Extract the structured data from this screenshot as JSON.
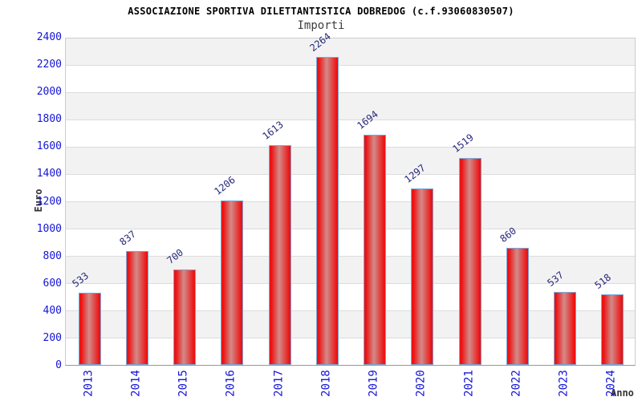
{
  "chart_data": {
    "type": "bar",
    "title": "ASSOCIAZIONE SPORTIVA DILETTANTISTICA DOBREDOG (c.f.93060830507)",
    "subtitle": "Importi",
    "xlabel": "Anno",
    "ylabel": "Euro",
    "categories": [
      "2013",
      "2014",
      "2015",
      "2016",
      "2017",
      "2018",
      "2019",
      "2020",
      "2021",
      "2022",
      "2023",
      "2024"
    ],
    "values": [
      533,
      837,
      700,
      1206,
      1613,
      2264,
      1694,
      1297,
      1519,
      860,
      537,
      518
    ],
    "ylim": [
      0,
      2400
    ],
    "ytick_step": 200,
    "yticks": [
      0,
      200,
      400,
      600,
      800,
      1000,
      1200,
      1400,
      1600,
      1800,
      2000,
      2200,
      2400
    ],
    "grid": true,
    "legend": "none",
    "value_labels_rotated": true,
    "x_labels_rotated_degrees": 90
  },
  "colors": {
    "bar_fill_edge": "#ed1212",
    "bar_fill_mid": "#d28b89",
    "bar_border": "#7aa7d8",
    "axis_tick_text": "#1414d6",
    "value_label_text": "#28287c",
    "band_gray": "#f2f2f2",
    "band_white": "#ffffff",
    "grid_line": "#dcdcdc",
    "title_text": "#000000",
    "subtitle_text": "#3d3d3d",
    "axis_title_text": "#333333"
  }
}
